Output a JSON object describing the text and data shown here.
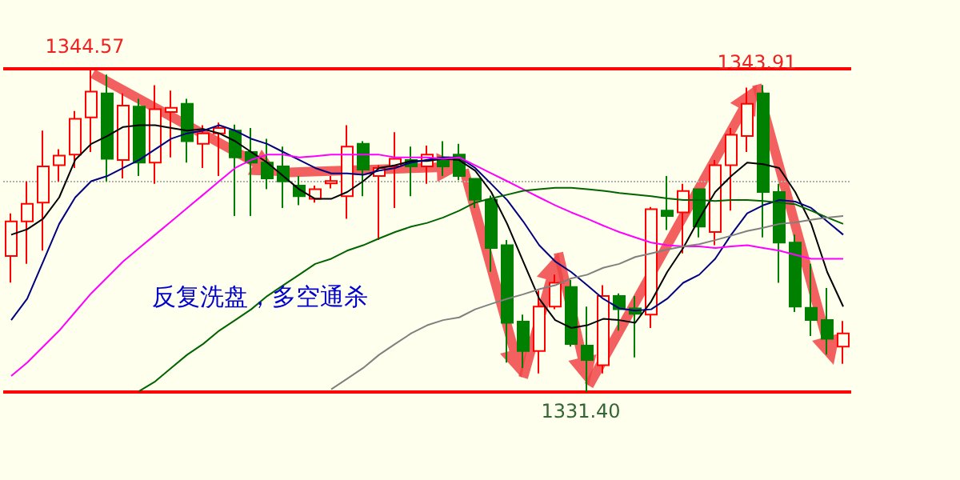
{
  "chart_data": {
    "type": "candlestick",
    "categories": [
      null,
      null,
      null,
      null,
      null,
      null,
      null,
      null,
      null,
      null,
      null,
      null,
      null,
      null,
      null,
      null,
      null,
      null,
      null,
      null,
      null,
      null,
      null,
      null,
      null,
      null,
      null,
      null,
      null,
      null,
      null,
      null,
      null,
      null,
      null,
      null,
      null,
      null,
      null,
      null,
      null,
      null,
      null,
      null,
      null,
      null,
      null,
      null,
      null,
      null,
      null,
      null,
      null
    ],
    "ohlc": [
      [
        1336.94,
        1338.68,
        1335.86,
        1338.35
      ],
      [
        1338.35,
        1339.98,
        1336.62,
        1339.07
      ],
      [
        1339.12,
        1342.05,
        1337.16,
        1340.59
      ],
      [
        1340.64,
        1341.29,
        1339.98,
        1341.03
      ],
      [
        1341.07,
        1342.85,
        1340.53,
        1342.53
      ],
      [
        1342.59,
        1344.57,
        1341.18,
        1343.64
      ],
      [
        1343.57,
        1344.33,
        1339.98,
        1340.9
      ],
      [
        1340.85,
        1343.57,
        1340.1,
        1343.07
      ],
      [
        1343.03,
        1343.35,
        1340.2,
        1340.75
      ],
      [
        1340.75,
        1343.9,
        1339.88,
        1342.92
      ],
      [
        1342.81,
        1343.68,
        1340.96,
        1342.98
      ],
      [
        1343.14,
        1343.35,
        1340.75,
        1341.62
      ],
      [
        1341.51,
        1342.27,
        1340.53,
        1341.94
      ],
      [
        1341.94,
        1342.38,
        1340.2,
        1342.16
      ],
      [
        1342.05,
        1342.3,
        1338.57,
        1340.96
      ],
      [
        1341.18,
        1342.16,
        1338.57,
        1340.75
      ],
      [
        1340.75,
        1341.72,
        1339.66,
        1340.1
      ],
      [
        1340.59,
        1341.4,
        1338.9,
        1339.98
      ],
      [
        1339.81,
        1340.2,
        1339.01,
        1339.38
      ],
      [
        1339.27,
        1339.81,
        1339.12,
        1339.66
      ],
      [
        1339.9,
        1340.2,
        1339.7,
        1340.0
      ],
      [
        1339.38,
        1342.27,
        1338.46,
        1341.4
      ],
      [
        1341.51,
        1341.62,
        1339.38,
        1340.46
      ],
      [
        1340.2,
        1340.64,
        1337.59,
        1340.53
      ],
      [
        1340.59,
        1341.99,
        1338.9,
        1340.9
      ],
      [
        1340.85,
        1341.4,
        1339.38,
        1340.59
      ],
      [
        1340.59,
        1341.44,
        1339.88,
        1341.07
      ],
      [
        1340.96,
        1341.62,
        1340.2,
        1340.59
      ],
      [
        1341.07,
        1341.51,
        1340.03,
        1340.2
      ],
      [
        1340.09,
        1340.1,
        1338.9,
        1339.23
      ],
      [
        1339.23,
        1339.4,
        1336.3,
        1337.27
      ],
      [
        1337.38,
        1337.59,
        1332.6,
        1334.22
      ],
      [
        1334.27,
        1334.55,
        1332.38,
        1333.07
      ],
      [
        1333.07,
        1335.53,
        1332.16,
        1334.88
      ],
      [
        1334.88,
        1336.18,
        1334.77,
        1335.85
      ],
      [
        1335.68,
        1335.96,
        1333.25,
        1333.36
      ],
      [
        1333.29,
        1334.88,
        1331.4,
        1332.7
      ],
      [
        1332.49,
        1335.75,
        1332.16,
        1335.31
      ],
      [
        1335.31,
        1335.42,
        1333.9,
        1334.77
      ],
      [
        1334.81,
        1335.31,
        1332.81,
        1334.59
      ],
      [
        1334.55,
        1338.94,
        1334.01,
        1338.85
      ],
      [
        1338.79,
        1340.2,
        1338.0,
        1338.57
      ],
      [
        1338.72,
        1339.88,
        1337.05,
        1339.59
      ],
      [
        1339.66,
        1339.7,
        1337.7,
        1338.14
      ],
      [
        1337.92,
        1340.85,
        1337.38,
        1340.64
      ],
      [
        1340.64,
        1342.16,
        1338.79,
        1341.88
      ],
      [
        1341.83,
        1343.8,
        1341.18,
        1343.14
      ],
      [
        1343.57,
        1343.91,
        1337.7,
        1339.55
      ],
      [
        1339.55,
        1339.88,
        1335.85,
        1337.49
      ],
      [
        1337.49,
        1337.81,
        1334.66,
        1334.88
      ],
      [
        1334.83,
        1336.62,
        1333.68,
        1334.33
      ],
      [
        1334.33,
        1335.64,
        1332.92,
        1333.57
      ],
      [
        1333.25,
        1334.29,
        1332.55,
        1333.79
      ]
    ],
    "colors": [
      "#ff0000",
      "#ff0000",
      "#ff0000",
      "#ff0000",
      "#ff0000",
      "#ff0000",
      "#008000",
      "#ff0000",
      "#008000",
      "#ff0000",
      "#ff0000",
      "#008000",
      "#ff0000",
      "#ff0000",
      "#008000",
      "#008000",
      "#008000",
      "#008000",
      "#008000",
      "#ff0000",
      "#ff0000",
      "#ff0000",
      "#008000",
      "#ff0000",
      "#ff0000",
      "#008000",
      "#ff0000",
      "#008000",
      "#008000",
      "#008000",
      "#008000",
      "#008000",
      "#008000",
      "#ff0000",
      "#ff0000",
      "#008000",
      "#008000",
      "#ff0000",
      "#008000",
      "#008000",
      "#ff0000",
      "#008000",
      "#ff0000",
      "#008000",
      "#ff0000",
      "#ff0000",
      "#ff0000",
      "#008000",
      "#008000",
      "#008000",
      "#008000",
      "#008000",
      "#ff0000"
    ],
    "series": [
      {
        "type": "line",
        "color": "#000000",
        "values": [
          1337.81,
          1338.03,
          1338.46,
          1339.33,
          1340.86,
          1341.51,
          1341.83,
          1342.2,
          1342.27,
          1342.27,
          1342.16,
          1342.05,
          1342.12,
          1341.94,
          1341.62,
          1341.18,
          1340.75,
          1340.2,
          1339.66,
          1339.27,
          1339.27,
          1339.55,
          1339.99,
          1340.53,
          1340.64,
          1340.81,
          1340.81,
          1340.9,
          1340.85,
          1340.42,
          1339.55,
          1338.25,
          1336.72,
          1335.2,
          1334.33,
          1334.01,
          1334.12,
          1334.38,
          1334.33,
          1334.22,
          1335.09,
          1336.29,
          1337.27,
          1338.46,
          1339.55,
          1340.2,
          1340.75,
          1340.68,
          1340.53,
          1339.55,
          1338.25,
          1336.29,
          1334.88
        ]
      },
      {
        "type": "line",
        "color": "#000080",
        "values": [
          1334.33,
          1335.2,
          1336.72,
          1338.25,
          1339.33,
          1339.99,
          1340.2,
          1340.53,
          1340.86,
          1341.29,
          1341.72,
          1341.94,
          1342.05,
          1342.27,
          1342.05,
          1341.72,
          1341.51,
          1341.18,
          1340.86,
          1340.53,
          1340.31,
          1340.31,
          1340.25,
          1340.42,
          1340.53,
          1340.75,
          1340.86,
          1340.96,
          1340.96,
          1340.53,
          1339.88,
          1339.22,
          1338.35,
          1337.38,
          1336.72,
          1336.29,
          1335.75,
          1335.2,
          1334.81,
          1334.72,
          1334.77,
          1335.2,
          1335.85,
          1336.18,
          1336.83,
          1337.81,
          1338.68,
          1339.01,
          1339.22,
          1339.16,
          1338.9,
          1338.35,
          1337.81
        ]
      },
      {
        "type": "line",
        "color": "#ff00ff",
        "values": [
          1332.05,
          1332.6,
          1333.25,
          1333.9,
          1334.66,
          1335.42,
          1336.07,
          1336.72,
          1337.27,
          1337.81,
          1338.35,
          1338.9,
          1339.44,
          1339.99,
          1340.53,
          1340.86,
          1341.07,
          1341.07,
          1340.96,
          1341.01,
          1341.07,
          1341.07,
          1341.07,
          1341.07,
          1340.96,
          1340.96,
          1340.96,
          1340.9,
          1340.96,
          1340.64,
          1340.31,
          1339.99,
          1339.66,
          1339.33,
          1339.01,
          1338.72,
          1338.46,
          1338.18,
          1337.92,
          1337.7,
          1337.49,
          1337.38,
          1337.33,
          1337.33,
          1337.27,
          1337.33,
          1337.38,
          1337.27,
          1337.16,
          1336.99,
          1336.83,
          1336.83,
          1336.83
        ]
      },
      {
        "type": "line",
        "color": "#006400",
        "values": [
          null,
          null,
          null,
          null,
          null,
          null,
          null,
          null,
          1331.44,
          1331.83,
          1332.38,
          1332.92,
          1333.36,
          1333.9,
          1334.33,
          1334.77,
          1335.31,
          1335.75,
          1336.18,
          1336.62,
          1336.83,
          1337.16,
          1337.38,
          1337.66,
          1337.92,
          1338.14,
          1338.29,
          1338.51,
          1338.79,
          1339.12,
          1339.29,
          1339.44,
          1339.6,
          1339.66,
          1339.72,
          1339.72,
          1339.66,
          1339.6,
          1339.51,
          1339.44,
          1339.38,
          1339.29,
          1339.22,
          1339.22,
          1339.18,
          1339.22,
          1339.22,
          1339.18,
          1339.12,
          1339.05,
          1338.79,
          1338.51,
          1338.25
        ]
      },
      {
        "type": "line",
        "color": "#808080",
        "values": [
          null,
          null,
          null,
          null,
          null,
          null,
          null,
          null,
          null,
          null,
          null,
          null,
          null,
          null,
          null,
          null,
          null,
          null,
          null,
          null,
          1331.51,
          1331.94,
          1332.38,
          1332.92,
          1333.36,
          1333.79,
          1334.12,
          1334.33,
          1334.44,
          1334.77,
          1334.99,
          1335.2,
          1335.38,
          1335.59,
          1335.75,
          1336.03,
          1336.18,
          1336.46,
          1336.62,
          1336.9,
          1337.05,
          1337.2,
          1337.33,
          1337.42,
          1337.59,
          1337.77,
          1337.96,
          1338.09,
          1338.25,
          1338.31,
          1338.42,
          1338.51,
          1338.57
        ]
      }
    ],
    "ref_lines": [
      {
        "axis": "y",
        "value": 1344.57,
        "color": "#ff0000"
      },
      {
        "axis": "y",
        "value": 1331.4,
        "color": "#ff0000"
      },
      {
        "axis": "y",
        "value": 1340.0,
        "color": "#b0b0b0",
        "line_style": "dotted"
      }
    ],
    "annotations": [
      "反复洗盘，多空通杀",
      {
        "text": "1344.57",
        "y": 1344.57
      },
      {
        "text": "1343.91",
        "y": 1343.91
      },
      {
        "text": "1331.40",
        "y": 1331.4
      }
    ],
    "marker": "none",
    "grid": false,
    "tick_labels": false
  }
}
